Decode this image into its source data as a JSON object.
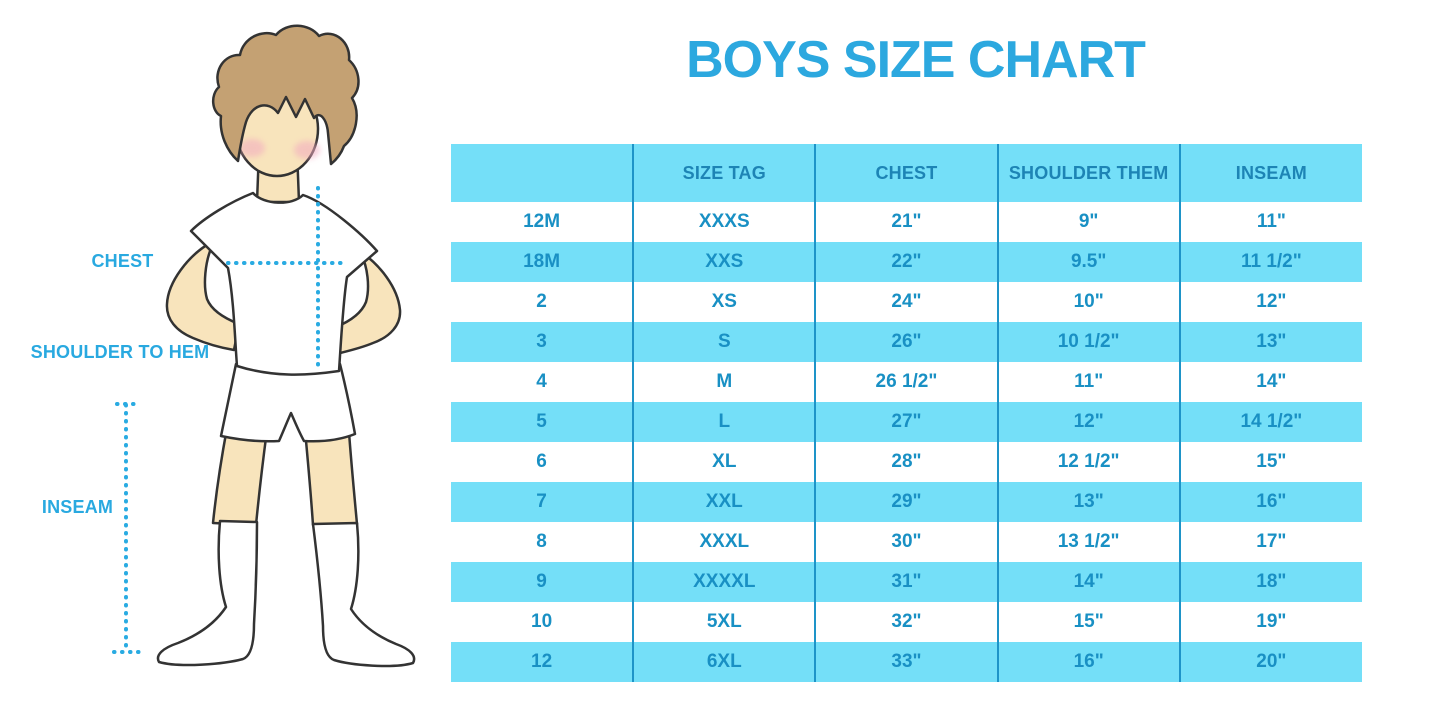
{
  "title": "BOYS SIZE CHART",
  "colors": {
    "title": "#2CA8DF",
    "band": "#74DFF8",
    "divider": "#1E94C8",
    "header_text": "#1D84B5",
    "cell_text": "#1990C4",
    "label": "#29A9E0",
    "dotted_line": "#29ABE2",
    "skin": "#F8E4BC",
    "hair": "#C4A173",
    "cheek": "#F2A9BF",
    "outline": "#333333"
  },
  "diagram": {
    "figure_icon": "boy-standing-illustration",
    "chest_label": "CHEST",
    "shoulder_label": "SHOULDER TO HEM",
    "inseam_label": "INSEAM"
  },
  "chart_data": {
    "type": "table",
    "title": "BOYS SIZE CHART",
    "columns": [
      "",
      "SIZE TAG",
      "CHEST",
      "SHOULDER THEM",
      "INSEAM"
    ],
    "rows": [
      [
        "12M",
        "XXXS",
        "21\"",
        "9\"",
        "11\""
      ],
      [
        "18M",
        "XXS",
        "22\"",
        "9.5\"",
        "11 1/2\""
      ],
      [
        "2",
        "XS",
        "24\"",
        "10\"",
        "12\""
      ],
      [
        "3",
        "S",
        "26\"",
        "10 1/2\"",
        "13\""
      ],
      [
        "4",
        "M",
        "26 1/2\"",
        "11\"",
        "14\""
      ],
      [
        "5",
        "L",
        "27\"",
        "12\"",
        "14 1/2\""
      ],
      [
        "6",
        "XL",
        "28\"",
        "12 1/2\"",
        "15\""
      ],
      [
        "7",
        "XXL",
        "29\"",
        "13\"",
        "16\""
      ],
      [
        "8",
        "XXXL",
        "30\"",
        "13 1/2\"",
        "17\""
      ],
      [
        "9",
        "XXXXL",
        "31\"",
        "14\"",
        "18\""
      ],
      [
        "10",
        "5XL",
        "32\"",
        "15\"",
        "19\""
      ],
      [
        "12",
        "6XL",
        "33\"",
        "16\"",
        "20\""
      ]
    ],
    "banding": "white and light-blue alternating rows, header light-blue",
    "grid": "internal vertical dividers only"
  }
}
